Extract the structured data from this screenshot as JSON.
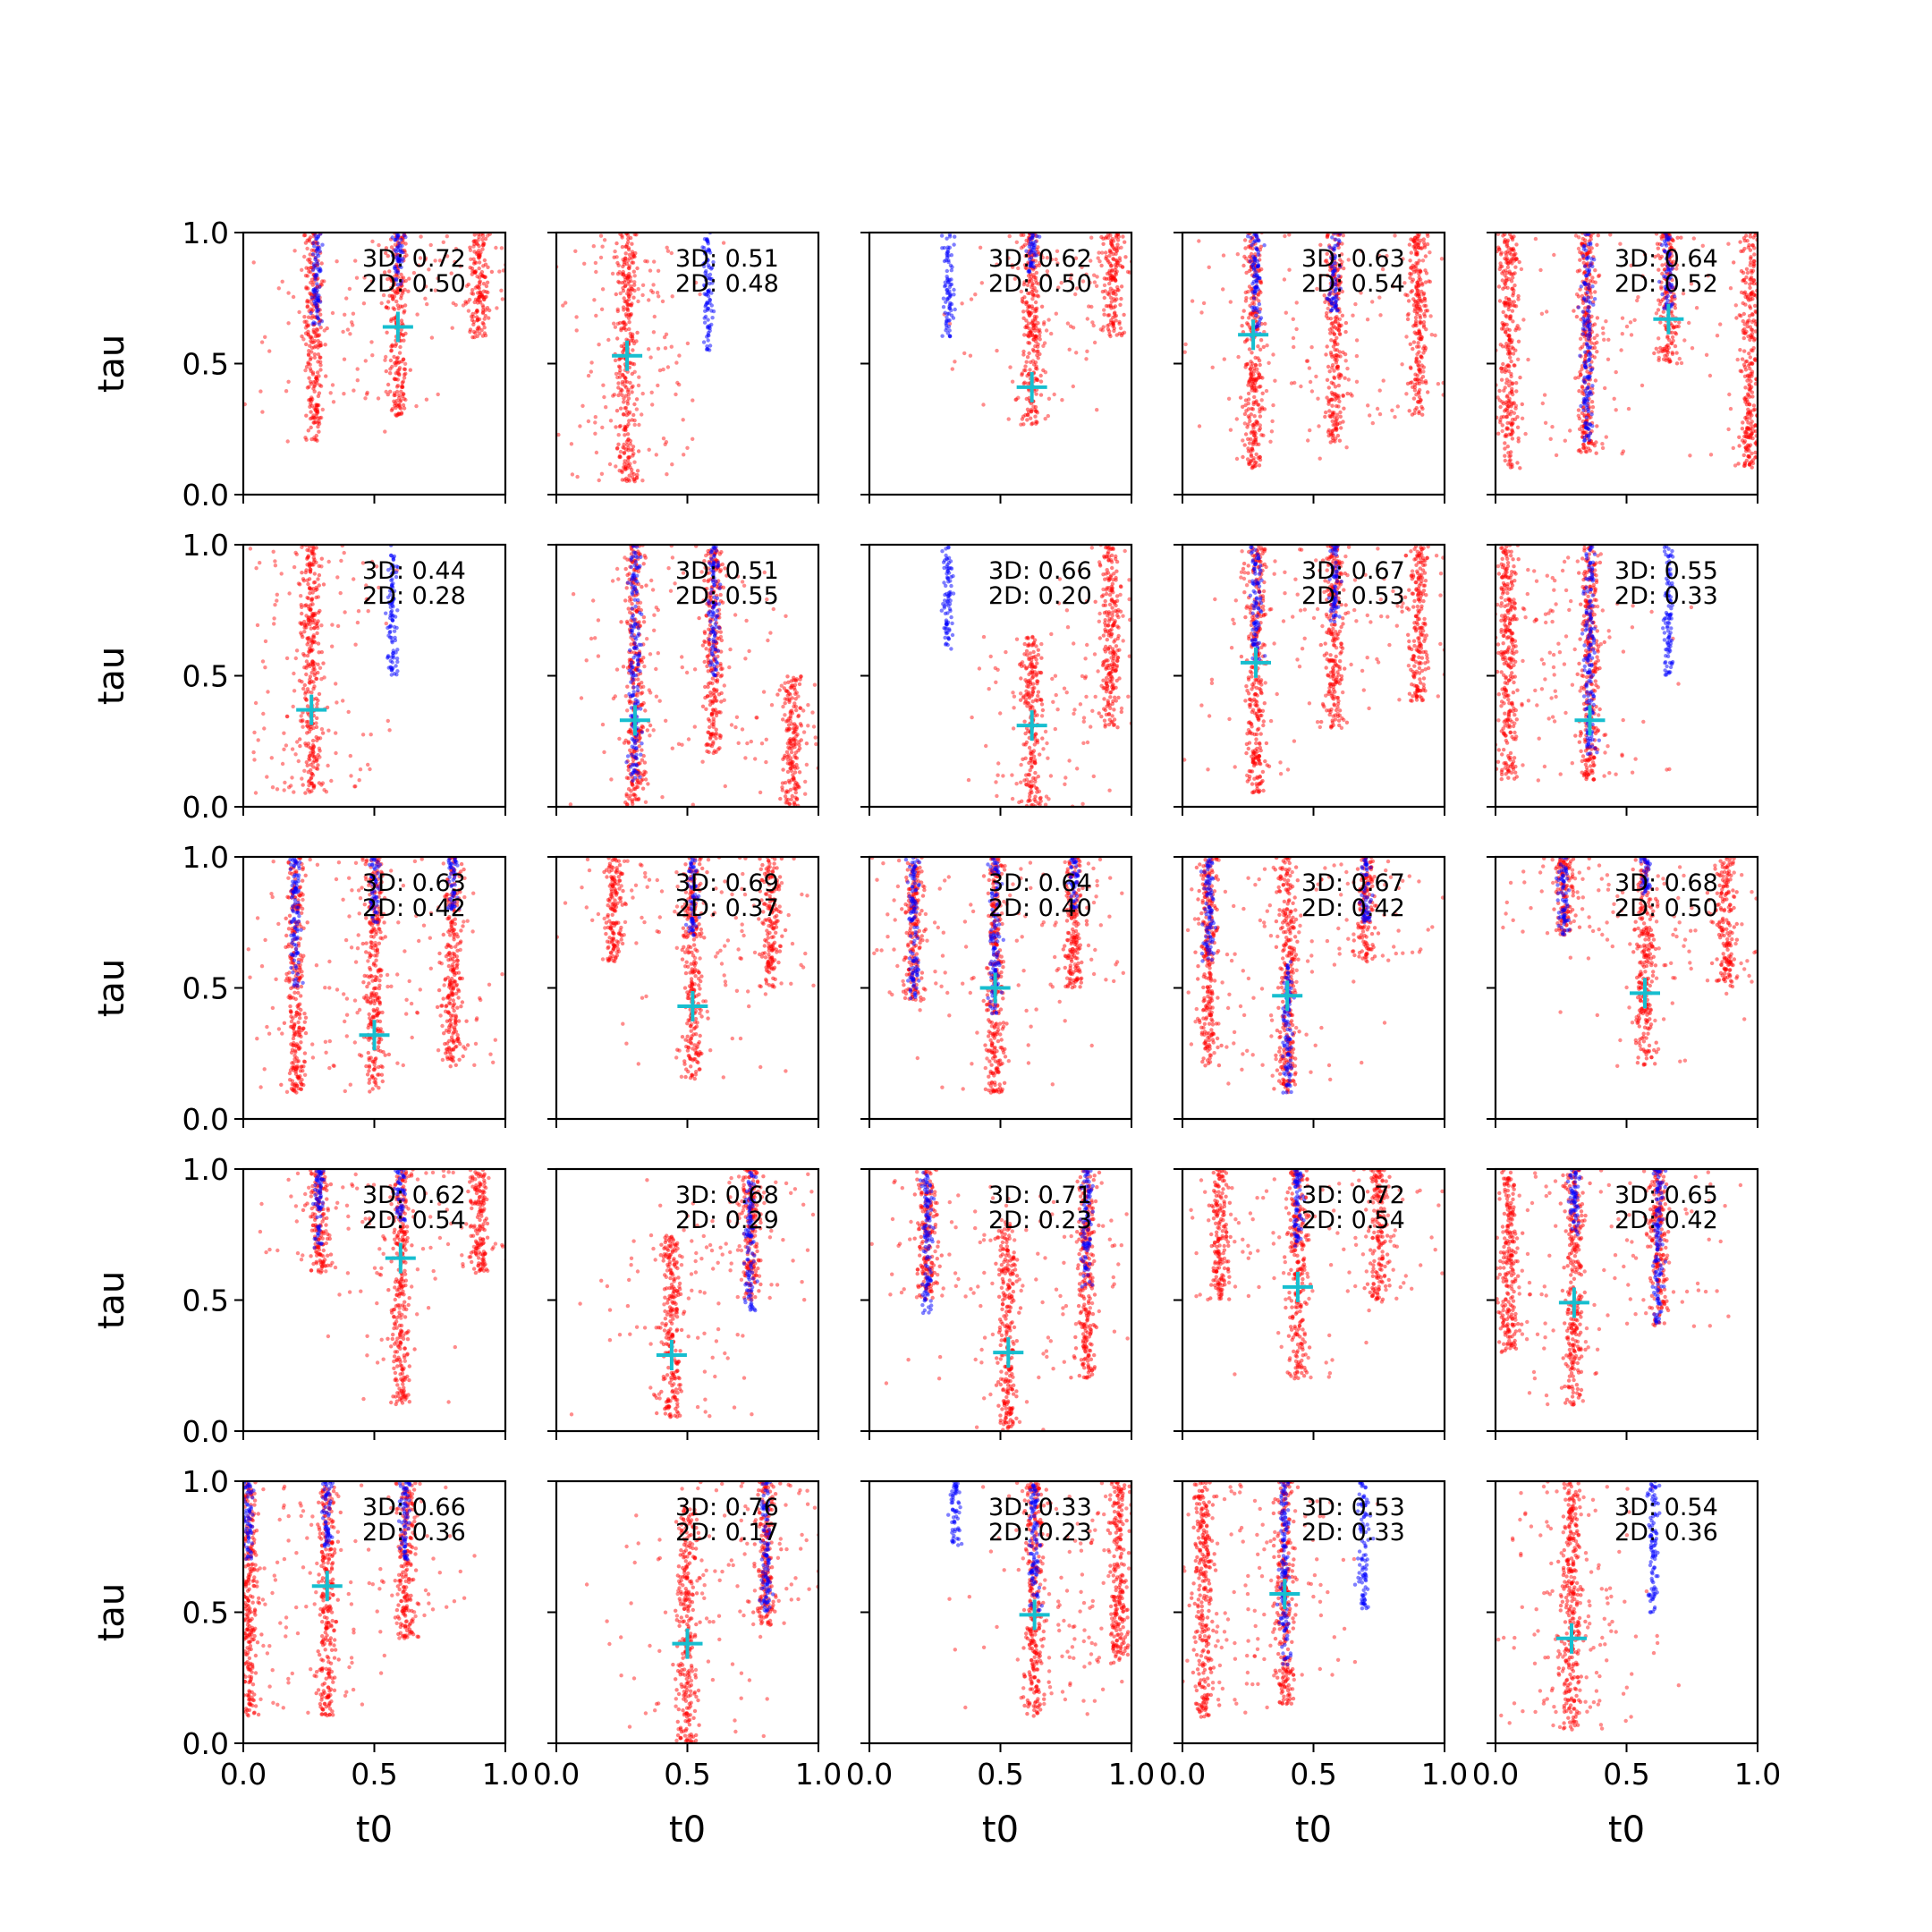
{
  "figure": {
    "grid_rows": 5,
    "grid_cols": 5,
    "xlabel": "t0",
    "ylabel": "tau",
    "xlim": [
      0,
      1
    ],
    "ylim": [
      0,
      1
    ],
    "xticks": [
      "0.0",
      "0.5",
      "1.0"
    ],
    "yticks": [
      "0.0",
      "0.5",
      "1.0"
    ],
    "colors": {
      "series_red": "#ff0000",
      "series_blue": "#0000ff",
      "marker": "#17becf"
    }
  },
  "chart_data": [
    {
      "type": "scatter",
      "row": 0,
      "col": 0,
      "annotation": [
        "3D: 0.72",
        "2D: 0.50"
      ],
      "marker": {
        "x": 0.59,
        "y": 0.64
      },
      "red_bands": [
        {
          "x": 0.27,
          "ymin": 0.2,
          "ymax": 1.0
        },
        {
          "x": 0.59,
          "ymin": 0.3,
          "ymax": 1.0
        },
        {
          "x": 0.9,
          "ymin": 0.6,
          "ymax": 1.0
        }
      ],
      "blue_bands": [
        {
          "x": 0.28,
          "ymin": 0.65,
          "ymax": 1.0
        },
        {
          "x": 0.59,
          "ymin": 0.8,
          "ymax": 1.0
        }
      ]
    },
    {
      "type": "scatter",
      "row": 0,
      "col": 1,
      "annotation": [
        "3D: 0.51",
        "2D: 0.48"
      ],
      "marker": {
        "x": 0.27,
        "y": 0.53
      },
      "red_bands": [
        {
          "x": 0.27,
          "ymin": 0.05,
          "ymax": 1.0
        }
      ],
      "blue_bands": [
        {
          "x": 0.58,
          "ymin": 0.55,
          "ymax": 1.0
        }
      ]
    },
    {
      "type": "scatter",
      "row": 0,
      "col": 2,
      "annotation": [
        "3D: 0.62",
        "2D: 0.50"
      ],
      "marker": {
        "x": 0.62,
        "y": 0.41
      },
      "red_bands": [
        {
          "x": 0.62,
          "ymin": 0.25,
          "ymax": 1.0
        },
        {
          "x": 0.93,
          "ymin": 0.6,
          "ymax": 1.0
        }
      ],
      "blue_bands": [
        {
          "x": 0.3,
          "ymin": 0.6,
          "ymax": 1.0
        },
        {
          "x": 0.62,
          "ymin": 0.85,
          "ymax": 1.0
        }
      ]
    },
    {
      "type": "scatter",
      "row": 0,
      "col": 3,
      "annotation": [
        "3D: 0.63",
        "2D: 0.54"
      ],
      "marker": {
        "x": 0.27,
        "y": 0.61
      },
      "red_bands": [
        {
          "x": 0.27,
          "ymin": 0.1,
          "ymax": 1.0
        },
        {
          "x": 0.58,
          "ymin": 0.2,
          "ymax": 1.0
        },
        {
          "x": 0.9,
          "ymin": 0.3,
          "ymax": 1.0
        }
      ],
      "blue_bands": [
        {
          "x": 0.28,
          "ymin": 0.6,
          "ymax": 1.0
        },
        {
          "x": 0.58,
          "ymin": 0.7,
          "ymax": 1.0
        }
      ]
    },
    {
      "type": "scatter",
      "row": 0,
      "col": 4,
      "annotation": [
        "3D: 0.64",
        "2D: 0.52"
      ],
      "marker": {
        "x": 0.66,
        "y": 0.67
      },
      "red_bands": [
        {
          "x": 0.05,
          "ymin": 0.1,
          "ymax": 1.0
        },
        {
          "x": 0.35,
          "ymin": 0.15,
          "ymax": 1.0
        },
        {
          "x": 0.66,
          "ymin": 0.5,
          "ymax": 1.0
        },
        {
          "x": 0.97,
          "ymin": 0.1,
          "ymax": 1.0
        }
      ],
      "blue_bands": [
        {
          "x": 0.35,
          "ymin": 0.2,
          "ymax": 1.0
        },
        {
          "x": 0.66,
          "ymin": 0.7,
          "ymax": 1.0
        }
      ]
    },
    {
      "type": "scatter",
      "row": 1,
      "col": 0,
      "annotation": [
        "3D: 0.44",
        "2D: 0.28"
      ],
      "marker": {
        "x": 0.26,
        "y": 0.37
      },
      "red_bands": [
        {
          "x": 0.26,
          "ymin": 0.05,
          "ymax": 1.0
        }
      ],
      "blue_bands": [
        {
          "x": 0.57,
          "ymin": 0.5,
          "ymax": 1.0
        }
      ]
    },
    {
      "type": "scatter",
      "row": 1,
      "col": 1,
      "annotation": [
        "3D: 0.51",
        "2D: 0.55"
      ],
      "marker": {
        "x": 0.3,
        "y": 0.33
      },
      "red_bands": [
        {
          "x": 0.3,
          "ymin": 0.0,
          "ymax": 1.0
        },
        {
          "x": 0.6,
          "ymin": 0.2,
          "ymax": 1.0
        },
        {
          "x": 0.9,
          "ymin": 0.0,
          "ymax": 0.5
        }
      ],
      "blue_bands": [
        {
          "x": 0.3,
          "ymin": 0.1,
          "ymax": 1.0
        },
        {
          "x": 0.6,
          "ymin": 0.5,
          "ymax": 1.0
        }
      ]
    },
    {
      "type": "scatter",
      "row": 1,
      "col": 2,
      "annotation": [
        "3D: 0.66",
        "2D: 0.20"
      ],
      "marker": {
        "x": 0.62,
        "y": 0.31
      },
      "red_bands": [
        {
          "x": 0.62,
          "ymin": 0.0,
          "ymax": 0.65
        },
        {
          "x": 0.92,
          "ymin": 0.3,
          "ymax": 1.0
        }
      ],
      "blue_bands": [
        {
          "x": 0.3,
          "ymin": 0.6,
          "ymax": 1.0
        }
      ]
    },
    {
      "type": "scatter",
      "row": 1,
      "col": 3,
      "annotation": [
        "3D: 0.67",
        "2D: 0.53"
      ],
      "marker": {
        "x": 0.28,
        "y": 0.55
      },
      "red_bands": [
        {
          "x": 0.28,
          "ymin": 0.05,
          "ymax": 1.0
        },
        {
          "x": 0.58,
          "ymin": 0.3,
          "ymax": 1.0
        },
        {
          "x": 0.9,
          "ymin": 0.4,
          "ymax": 1.0
        }
      ],
      "blue_bands": [
        {
          "x": 0.28,
          "ymin": 0.55,
          "ymax": 1.0
        },
        {
          "x": 0.58,
          "ymin": 0.7,
          "ymax": 1.0
        }
      ]
    },
    {
      "type": "scatter",
      "row": 1,
      "col": 4,
      "annotation": [
        "3D: 0.55",
        "2D: 0.33"
      ],
      "marker": {
        "x": 0.36,
        "y": 0.33
      },
      "red_bands": [
        {
          "x": 0.05,
          "ymin": 0.1,
          "ymax": 1.0
        },
        {
          "x": 0.36,
          "ymin": 0.1,
          "ymax": 1.0
        }
      ],
      "blue_bands": [
        {
          "x": 0.36,
          "ymin": 0.2,
          "ymax": 1.0
        },
        {
          "x": 0.66,
          "ymin": 0.5,
          "ymax": 1.0
        }
      ]
    },
    {
      "type": "scatter",
      "row": 2,
      "col": 0,
      "annotation": [
        "3D: 0.63",
        "2D: 0.42"
      ],
      "marker": {
        "x": 0.5,
        "y": 0.32
      },
      "red_bands": [
        {
          "x": 0.2,
          "ymin": 0.1,
          "ymax": 1.0
        },
        {
          "x": 0.5,
          "ymin": 0.1,
          "ymax": 1.0
        },
        {
          "x": 0.8,
          "ymin": 0.2,
          "ymax": 1.0
        }
      ],
      "blue_bands": [
        {
          "x": 0.2,
          "ymin": 0.5,
          "ymax": 1.0
        },
        {
          "x": 0.5,
          "ymin": 0.75,
          "ymax": 1.0
        },
        {
          "x": 0.8,
          "ymin": 0.8,
          "ymax": 1.0
        }
      ]
    },
    {
      "type": "scatter",
      "row": 2,
      "col": 1,
      "annotation": [
        "3D: 0.69",
        "2D: 0.37"
      ],
      "marker": {
        "x": 0.52,
        "y": 0.43
      },
      "red_bands": [
        {
          "x": 0.22,
          "ymin": 0.6,
          "ymax": 1.0
        },
        {
          "x": 0.52,
          "ymin": 0.15,
          "ymax": 1.0
        },
        {
          "x": 0.82,
          "ymin": 0.5,
          "ymax": 1.0
        }
      ],
      "blue_bands": [
        {
          "x": 0.52,
          "ymin": 0.7,
          "ymax": 1.0
        }
      ]
    },
    {
      "type": "scatter",
      "row": 2,
      "col": 2,
      "annotation": [
        "3D: 0.64",
        "2D: 0.40"
      ],
      "marker": {
        "x": 0.48,
        "y": 0.5
      },
      "red_bands": [
        {
          "x": 0.17,
          "ymin": 0.45,
          "ymax": 1.0
        },
        {
          "x": 0.48,
          "ymin": 0.1,
          "ymax": 1.0
        },
        {
          "x": 0.78,
          "ymin": 0.5,
          "ymax": 1.0
        }
      ],
      "blue_bands": [
        {
          "x": 0.17,
          "ymin": 0.45,
          "ymax": 1.0
        },
        {
          "x": 0.48,
          "ymin": 0.4,
          "ymax": 1.0
        },
        {
          "x": 0.78,
          "ymin": 0.8,
          "ymax": 1.0
        }
      ]
    },
    {
      "type": "scatter",
      "row": 2,
      "col": 3,
      "annotation": [
        "3D: 0.67",
        "2D: 0.42"
      ],
      "marker": {
        "x": 0.4,
        "y": 0.47
      },
      "red_bands": [
        {
          "x": 0.1,
          "ymin": 0.2,
          "ymax": 1.0
        },
        {
          "x": 0.4,
          "ymin": 0.1,
          "ymax": 1.0
        },
        {
          "x": 0.7,
          "ymin": 0.6,
          "ymax": 1.0
        }
      ],
      "blue_bands": [
        {
          "x": 0.1,
          "ymin": 0.6,
          "ymax": 1.0
        },
        {
          "x": 0.4,
          "ymin": 0.1,
          "ymax": 0.6
        },
        {
          "x": 0.7,
          "ymin": 0.75,
          "ymax": 1.0
        }
      ]
    },
    {
      "type": "scatter",
      "row": 2,
      "col": 4,
      "annotation": [
        "3D: 0.68",
        "2D: 0.50"
      ],
      "marker": {
        "x": 0.57,
        "y": 0.48
      },
      "red_bands": [
        {
          "x": 0.26,
          "ymin": 0.7,
          "ymax": 1.0
        },
        {
          "x": 0.57,
          "ymin": 0.2,
          "ymax": 1.0
        },
        {
          "x": 0.88,
          "ymin": 0.5,
          "ymax": 1.0
        }
      ],
      "blue_bands": [
        {
          "x": 0.26,
          "ymin": 0.7,
          "ymax": 1.0
        },
        {
          "x": 0.57,
          "ymin": 0.85,
          "ymax": 1.0
        }
      ]
    },
    {
      "type": "scatter",
      "row": 3,
      "col": 0,
      "annotation": [
        "3D: 0.62",
        "2D: 0.54"
      ],
      "marker": {
        "x": 0.6,
        "y": 0.66
      },
      "red_bands": [
        {
          "x": 0.29,
          "ymin": 0.6,
          "ymax": 1.0
        },
        {
          "x": 0.6,
          "ymin": 0.1,
          "ymax": 1.0
        },
        {
          "x": 0.9,
          "ymin": 0.6,
          "ymax": 1.0
        }
      ],
      "blue_bands": [
        {
          "x": 0.29,
          "ymin": 0.7,
          "ymax": 1.0
        },
        {
          "x": 0.6,
          "ymin": 0.8,
          "ymax": 1.0
        }
      ]
    },
    {
      "type": "scatter",
      "row": 3,
      "col": 1,
      "annotation": [
        "3D: 0.68",
        "2D: 0.29"
      ],
      "marker": {
        "x": 0.44,
        "y": 0.29
      },
      "red_bands": [
        {
          "x": 0.44,
          "ymin": 0.05,
          "ymax": 0.75
        },
        {
          "x": 0.74,
          "ymin": 0.5,
          "ymax": 1.0
        }
      ],
      "blue_bands": [
        {
          "x": 0.74,
          "ymin": 0.45,
          "ymax": 1.0
        }
      ]
    },
    {
      "type": "scatter",
      "row": 3,
      "col": 2,
      "annotation": [
        "3D: 0.71",
        "2D: 0.23"
      ],
      "marker": {
        "x": 0.53,
        "y": 0.3
      },
      "red_bands": [
        {
          "x": 0.22,
          "ymin": 0.5,
          "ymax": 1.0
        },
        {
          "x": 0.53,
          "ymin": 0.0,
          "ymax": 0.8
        },
        {
          "x": 0.83,
          "ymin": 0.2,
          "ymax": 1.0
        }
      ],
      "blue_bands": [
        {
          "x": 0.22,
          "ymin": 0.45,
          "ymax": 1.0
        },
        {
          "x": 0.83,
          "ymin": 0.55,
          "ymax": 1.0
        }
      ]
    },
    {
      "type": "scatter",
      "row": 3,
      "col": 3,
      "annotation": [
        "3D: 0.72",
        "2D: 0.54"
      ],
      "marker": {
        "x": 0.44,
        "y": 0.55
      },
      "red_bands": [
        {
          "x": 0.14,
          "ymin": 0.5,
          "ymax": 1.0
        },
        {
          "x": 0.44,
          "ymin": 0.2,
          "ymax": 1.0
        },
        {
          "x": 0.75,
          "ymin": 0.5,
          "ymax": 1.0
        }
      ],
      "blue_bands": [
        {
          "x": 0.44,
          "ymin": 0.7,
          "ymax": 1.0
        }
      ]
    },
    {
      "type": "scatter",
      "row": 3,
      "col": 4,
      "annotation": [
        "3D: 0.65",
        "2D: 0.42"
      ],
      "marker": {
        "x": 0.3,
        "y": 0.49
      },
      "red_bands": [
        {
          "x": 0.05,
          "ymin": 0.3,
          "ymax": 1.0
        },
        {
          "x": 0.3,
          "ymin": 0.1,
          "ymax": 1.0
        },
        {
          "x": 0.62,
          "ymin": 0.4,
          "ymax": 1.0
        }
      ],
      "blue_bands": [
        {
          "x": 0.3,
          "ymin": 0.75,
          "ymax": 1.0
        },
        {
          "x": 0.62,
          "ymin": 0.4,
          "ymax": 1.0
        }
      ]
    },
    {
      "type": "scatter",
      "row": 4,
      "col": 0,
      "annotation": [
        "3D: 0.66",
        "2D: 0.36"
      ],
      "marker": {
        "x": 0.32,
        "y": 0.6
      },
      "red_bands": [
        {
          "x": 0.02,
          "ymin": 0.1,
          "ymax": 1.0
        },
        {
          "x": 0.32,
          "ymin": 0.1,
          "ymax": 1.0
        },
        {
          "x": 0.62,
          "ymin": 0.4,
          "ymax": 1.0
        }
      ],
      "blue_bands": [
        {
          "x": 0.02,
          "ymin": 0.7,
          "ymax": 1.0
        },
        {
          "x": 0.32,
          "ymin": 0.75,
          "ymax": 1.0
        },
        {
          "x": 0.62,
          "ymin": 0.7,
          "ymax": 1.0
        }
      ]
    },
    {
      "type": "scatter",
      "row": 4,
      "col": 1,
      "annotation": [
        "3D: 0.76",
        "2D: 0.17"
      ],
      "marker": {
        "x": 0.5,
        "y": 0.38
      },
      "red_bands": [
        {
          "x": 0.5,
          "ymin": 0.0,
          "ymax": 0.9
        },
        {
          "x": 0.8,
          "ymin": 0.45,
          "ymax": 1.0
        }
      ],
      "blue_bands": [
        {
          "x": 0.8,
          "ymin": 0.5,
          "ymax": 1.0
        }
      ]
    },
    {
      "type": "scatter",
      "row": 4,
      "col": 2,
      "annotation": [
        "3D: 0.33",
        "2D: 0.23"
      ],
      "marker": {
        "x": 0.63,
        "y": 0.49
      },
      "red_bands": [
        {
          "x": 0.63,
          "ymin": 0.1,
          "ymax": 1.0
        },
        {
          "x": 0.95,
          "ymin": 0.3,
          "ymax": 1.0
        }
      ],
      "blue_bands": [
        {
          "x": 0.33,
          "ymin": 0.75,
          "ymax": 1.0
        },
        {
          "x": 0.63,
          "ymin": 0.5,
          "ymax": 1.0
        }
      ]
    },
    {
      "type": "scatter",
      "row": 4,
      "col": 3,
      "annotation": [
        "3D: 0.53",
        "2D: 0.33"
      ],
      "marker": {
        "x": 0.39,
        "y": 0.57
      },
      "red_bands": [
        {
          "x": 0.08,
          "ymin": 0.1,
          "ymax": 1.0
        },
        {
          "x": 0.39,
          "ymin": 0.15,
          "ymax": 1.0
        }
      ],
      "blue_bands": [
        {
          "x": 0.39,
          "ymin": 0.3,
          "ymax": 1.0
        },
        {
          "x": 0.69,
          "ymin": 0.5,
          "ymax": 1.0
        }
      ]
    },
    {
      "type": "scatter",
      "row": 4,
      "col": 4,
      "annotation": [
        "3D: 0.54",
        "2D: 0.36"
      ],
      "marker": {
        "x": 0.29,
        "y": 0.4
      },
      "red_bands": [
        {
          "x": 0.29,
          "ymin": 0.05,
          "ymax": 1.0
        }
      ],
      "blue_bands": [
        {
          "x": 0.6,
          "ymin": 0.5,
          "ymax": 1.0
        }
      ]
    }
  ]
}
